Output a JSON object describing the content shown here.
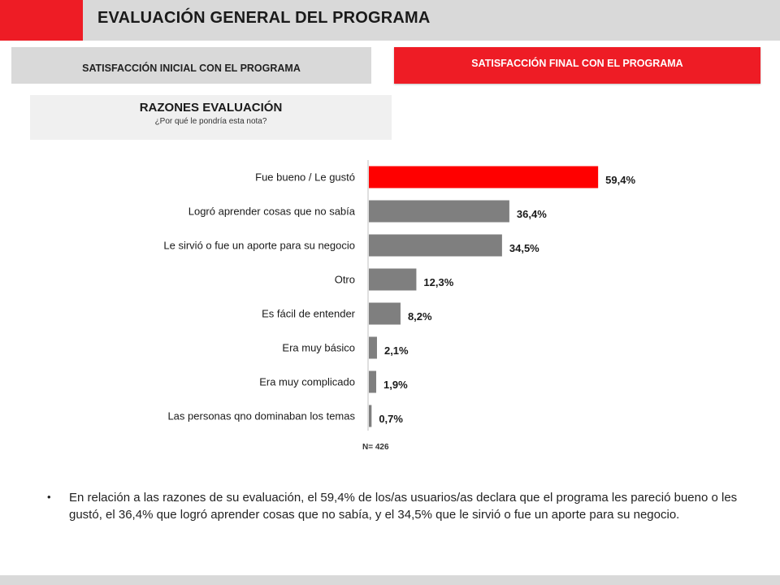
{
  "header": {
    "title": "EVALUACIÓN GENERAL DEL PROGRAMA"
  },
  "tabs": {
    "initial": "SATISFACCIÓN INICIAL CON EL PROGRAMA",
    "final": "SATISFACCIÓN FINAL CON EL PROGRAMA"
  },
  "reasons": {
    "title": "RAZONES EVALUACIÓN",
    "subtitle": "¿Por qué le pondría esta nota?"
  },
  "chart_data": {
    "type": "bar",
    "orientation": "horizontal",
    "categories": [
      "Fue bueno / Le gustó",
      "Logró aprender cosas que no sabía",
      "Le sirvió o fue un aporte para su negocio",
      "Otro",
      "Es fácil de entender",
      "Era muy básico",
      "Era muy complicado",
      "Las personas qno dominaban los temas"
    ],
    "values": [
      59.4,
      36.4,
      34.5,
      12.3,
      8.2,
      2.1,
      1.9,
      0.7
    ],
    "value_labels": [
      "59,4%",
      "36,4%",
      "34,5%",
      "12,3%",
      "8,2%",
      "2,1%",
      "1,9%",
      "0,7%"
    ],
    "highlight_index": 0,
    "colors": {
      "highlight": "#ff0000",
      "default": "#7f7f7f"
    },
    "note": "N= 426"
  },
  "summary": {
    "bullet": "•",
    "text": "En relación a las razones de su evaluación, el 59,4% de los/as usuarios/as declara que el programa les pareció bueno o les gustó, el 36,4% que logró aprender cosas que no sabía,  y el 34,5% que le sirvió o fue un aporte para su negocio."
  }
}
